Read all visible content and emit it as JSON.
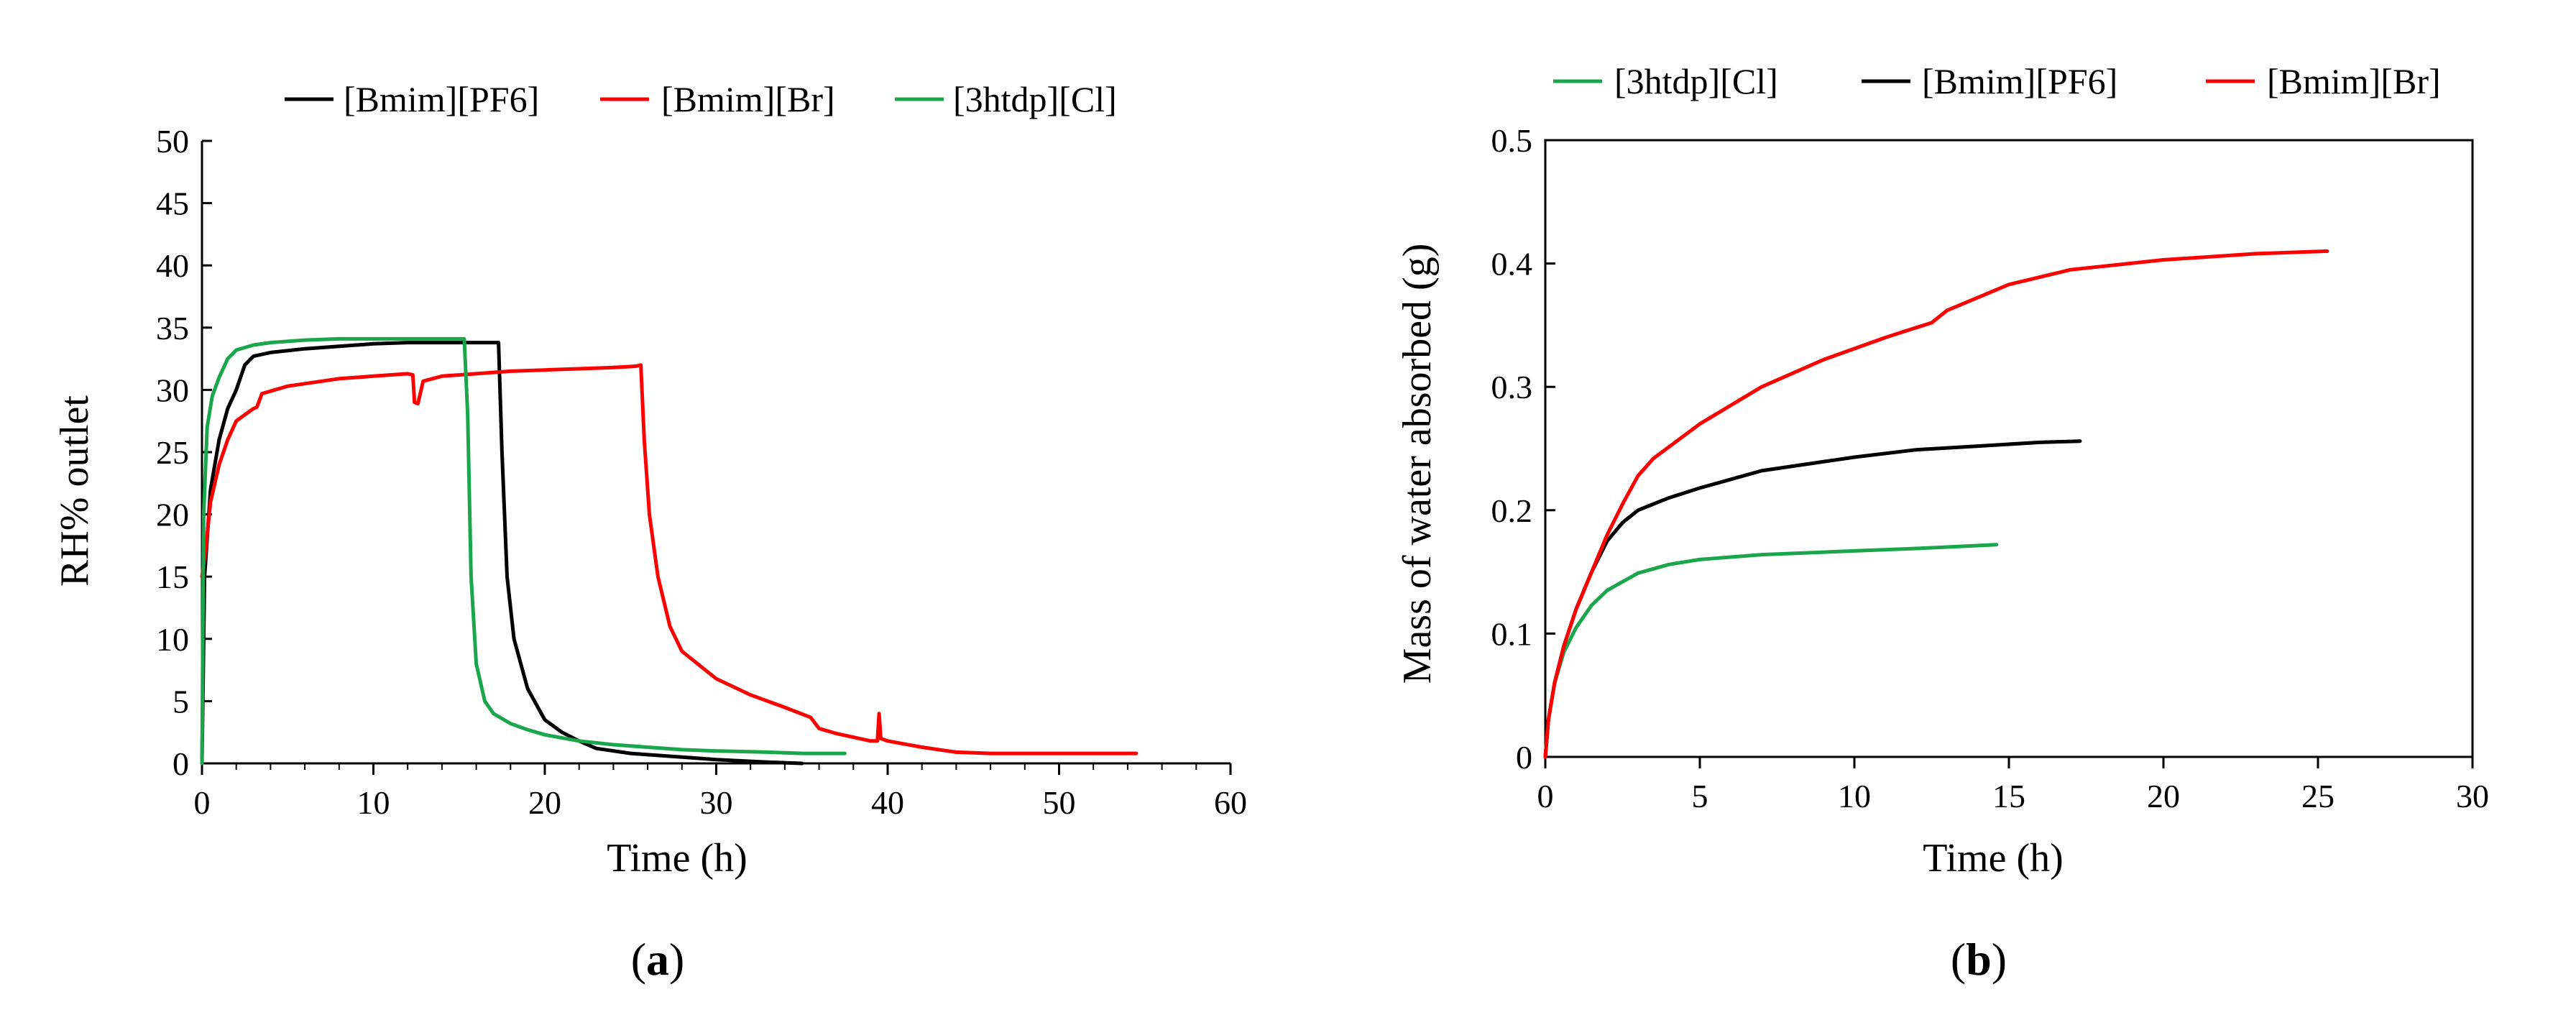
{
  "chart_data": [
    {
      "type": "line",
      "panel_label_open": "(",
      "panel_label_letter": "a",
      "panel_label_close": ")",
      "xlabel": "Time (h)",
      "ylabel": "RH% outlet",
      "xlim": [
        0,
        60
      ],
      "ylim": [
        0,
        50
      ],
      "x_ticks": [
        0,
        10,
        20,
        30,
        40,
        50,
        60
      ],
      "y_ticks": [
        0,
        5,
        10,
        15,
        20,
        25,
        30,
        35,
        40,
        45,
        50
      ],
      "grid": false,
      "legend_position": "top-center",
      "series": [
        {
          "name": "[Bmim][PF6]",
          "color": "#000000",
          "points": [
            [
              0,
              0
            ],
            [
              0.15,
              15
            ],
            [
              0.5,
              22
            ],
            [
              1,
              26
            ],
            [
              1.5,
              28.5
            ],
            [
              2,
              30
            ],
            [
              2.5,
              32
            ],
            [
              3,
              32.7
            ],
            [
              4,
              33
            ],
            [
              6,
              33.3
            ],
            [
              8,
              33.5
            ],
            [
              10,
              33.7
            ],
            [
              12,
              33.8
            ],
            [
              14,
              33.8
            ],
            [
              16,
              33.8
            ],
            [
              17,
              33.8
            ],
            [
              17.3,
              33.8
            ],
            [
              17.5,
              25
            ],
            [
              17.8,
              15
            ],
            [
              18.2,
              10
            ],
            [
              19,
              6
            ],
            [
              20,
              3.5
            ],
            [
              21,
              2.5
            ],
            [
              22,
              1.8
            ],
            [
              23,
              1.2
            ],
            [
              25,
              0.8
            ],
            [
              28,
              0.5
            ],
            [
              30,
              0.3
            ],
            [
              33,
              0.1
            ],
            [
              35,
              0
            ]
          ]
        },
        {
          "name": "[Bmim][Br]",
          "color": "#ff0000",
          "points": [
            [
              0,
              15
            ],
            [
              0.2,
              17
            ],
            [
              0.5,
              21
            ],
            [
              1,
              24
            ],
            [
              1.5,
              26
            ],
            [
              2,
              27.5
            ],
            [
              3,
              28.5
            ],
            [
              3.2,
              28.6
            ],
            [
              3.5,
              29.7
            ],
            [
              5,
              30.3
            ],
            [
              8,
              30.9
            ],
            [
              10,
              31.1
            ],
            [
              12,
              31.3
            ],
            [
              12.3,
              31.2
            ],
            [
              12.4,
              29
            ],
            [
              12.6,
              28.9
            ],
            [
              12.9,
              30.7
            ],
            [
              14,
              31.1
            ],
            [
              16,
              31.3
            ],
            [
              18,
              31.5
            ],
            [
              20,
              31.6
            ],
            [
              22,
              31.7
            ],
            [
              24,
              31.8
            ],
            [
              25.3,
              31.9
            ],
            [
              25.6,
              32
            ],
            [
              25.8,
              26
            ],
            [
              26.1,
              20
            ],
            [
              26.6,
              15
            ],
            [
              27.3,
              11
            ],
            [
              28,
              9
            ],
            [
              30,
              6.8
            ],
            [
              32,
              5.5
            ],
            [
              34,
              4.5
            ],
            [
              35.5,
              3.7
            ],
            [
              36,
              2.8
            ],
            [
              37,
              2.4
            ],
            [
              38,
              2.1
            ],
            [
              39,
              1.8
            ],
            [
              39.4,
              1.8
            ],
            [
              39.5,
              4
            ],
            [
              39.6,
              2
            ],
            [
              40,
              1.8
            ],
            [
              42,
              1.3
            ],
            [
              43.5,
              1
            ],
            [
              44,
              0.9
            ],
            [
              46,
              0.8
            ],
            [
              50,
              0.8
            ],
            [
              52,
              0.8
            ],
            [
              54.5,
              0.8
            ]
          ]
        },
        {
          "name": "[3htdp][Cl]",
          "color": "#1aa64a",
          "points": [
            [
              0,
              0
            ],
            [
              0.1,
              20
            ],
            [
              0.3,
              27
            ],
            [
              0.6,
              29.5
            ],
            [
              1,
              31
            ],
            [
              1.5,
              32.5
            ],
            [
              2,
              33.2
            ],
            [
              3,
              33.6
            ],
            [
              4,
              33.8
            ],
            [
              6,
              34
            ],
            [
              8,
              34.1
            ],
            [
              10,
              34.1
            ],
            [
              12,
              34.1
            ],
            [
              14,
              34.1
            ],
            [
              15.3,
              34.1
            ],
            [
              15.5,
              28
            ],
            [
              15.7,
              15
            ],
            [
              16,
              8
            ],
            [
              16.5,
              5
            ],
            [
              17,
              4
            ],
            [
              18,
              3.2
            ],
            [
              19,
              2.7
            ],
            [
              20,
              2.3
            ],
            [
              22,
              1.8
            ],
            [
              24,
              1.5
            ],
            [
              26,
              1.3
            ],
            [
              28,
              1.1
            ],
            [
              30,
              1
            ],
            [
              33,
              0.9
            ],
            [
              35,
              0.8
            ],
            [
              37.5,
              0.8
            ]
          ]
        }
      ]
    },
    {
      "type": "line",
      "panel_label_open": "(",
      "panel_label_letter": "b",
      "panel_label_close": ")",
      "xlabel": "Time (h)",
      "ylabel": "Mass of water absorbed (g)",
      "xlim": [
        0,
        30
      ],
      "ylim": [
        0,
        0.5
      ],
      "x_ticks": [
        0,
        5,
        10,
        15,
        20,
        25,
        30
      ],
      "y_ticks": [
        0,
        0.1,
        0.2,
        0.3,
        0.4,
        0.5
      ],
      "grid": false,
      "legend_position": "top",
      "series": [
        {
          "name": "[3htdp][Cl]",
          "color": "#1aa64a",
          "points": [
            [
              0,
              0
            ],
            [
              0.1,
              0.03
            ],
            [
              0.3,
              0.06
            ],
            [
              0.6,
              0.085
            ],
            [
              1,
              0.105
            ],
            [
              1.5,
              0.123
            ],
            [
              2,
              0.135
            ],
            [
              3,
              0.149
            ],
            [
              4,
              0.156
            ],
            [
              5,
              0.16
            ],
            [
              7,
              0.164
            ],
            [
              10,
              0.167
            ],
            [
              12,
              0.169
            ],
            [
              14.6,
              0.172
            ]
          ]
        },
        {
          "name": "[Bmim][PF6]",
          "color": "#000000",
          "points": [
            [
              0,
              0
            ],
            [
              0.1,
              0.03
            ],
            [
              0.3,
              0.06
            ],
            [
              0.6,
              0.09
            ],
            [
              1,
              0.12
            ],
            [
              1.5,
              0.15
            ],
            [
              2,
              0.175
            ],
            [
              2.5,
              0.19
            ],
            [
              3,
              0.2
            ],
            [
              4,
              0.21
            ],
            [
              5,
              0.218
            ],
            [
              7,
              0.232
            ],
            [
              10,
              0.243
            ],
            [
              12,
              0.249
            ],
            [
              14,
              0.252
            ],
            [
              16,
              0.255
            ],
            [
              17.3,
              0.256
            ]
          ]
        },
        {
          "name": "[Bmim][Br]",
          "color": "#ff0000",
          "points": [
            [
              0,
              0
            ],
            [
              0.1,
              0.03
            ],
            [
              0.3,
              0.06
            ],
            [
              0.6,
              0.09
            ],
            [
              1,
              0.12
            ],
            [
              1.5,
              0.15
            ],
            [
              2,
              0.18
            ],
            [
              2.5,
              0.205
            ],
            [
              3,
              0.228
            ],
            [
              3.5,
              0.242
            ],
            [
              5,
              0.27
            ],
            [
              7,
              0.3
            ],
            [
              9,
              0.322
            ],
            [
              11,
              0.34
            ],
            [
              12,
              0.348
            ],
            [
              12.5,
              0.352
            ],
            [
              13,
              0.362
            ],
            [
              15,
              0.383
            ],
            [
              17,
              0.395
            ],
            [
              20,
              0.403
            ],
            [
              23,
              0.408
            ],
            [
              25.3,
              0.41
            ]
          ]
        }
      ]
    }
  ]
}
